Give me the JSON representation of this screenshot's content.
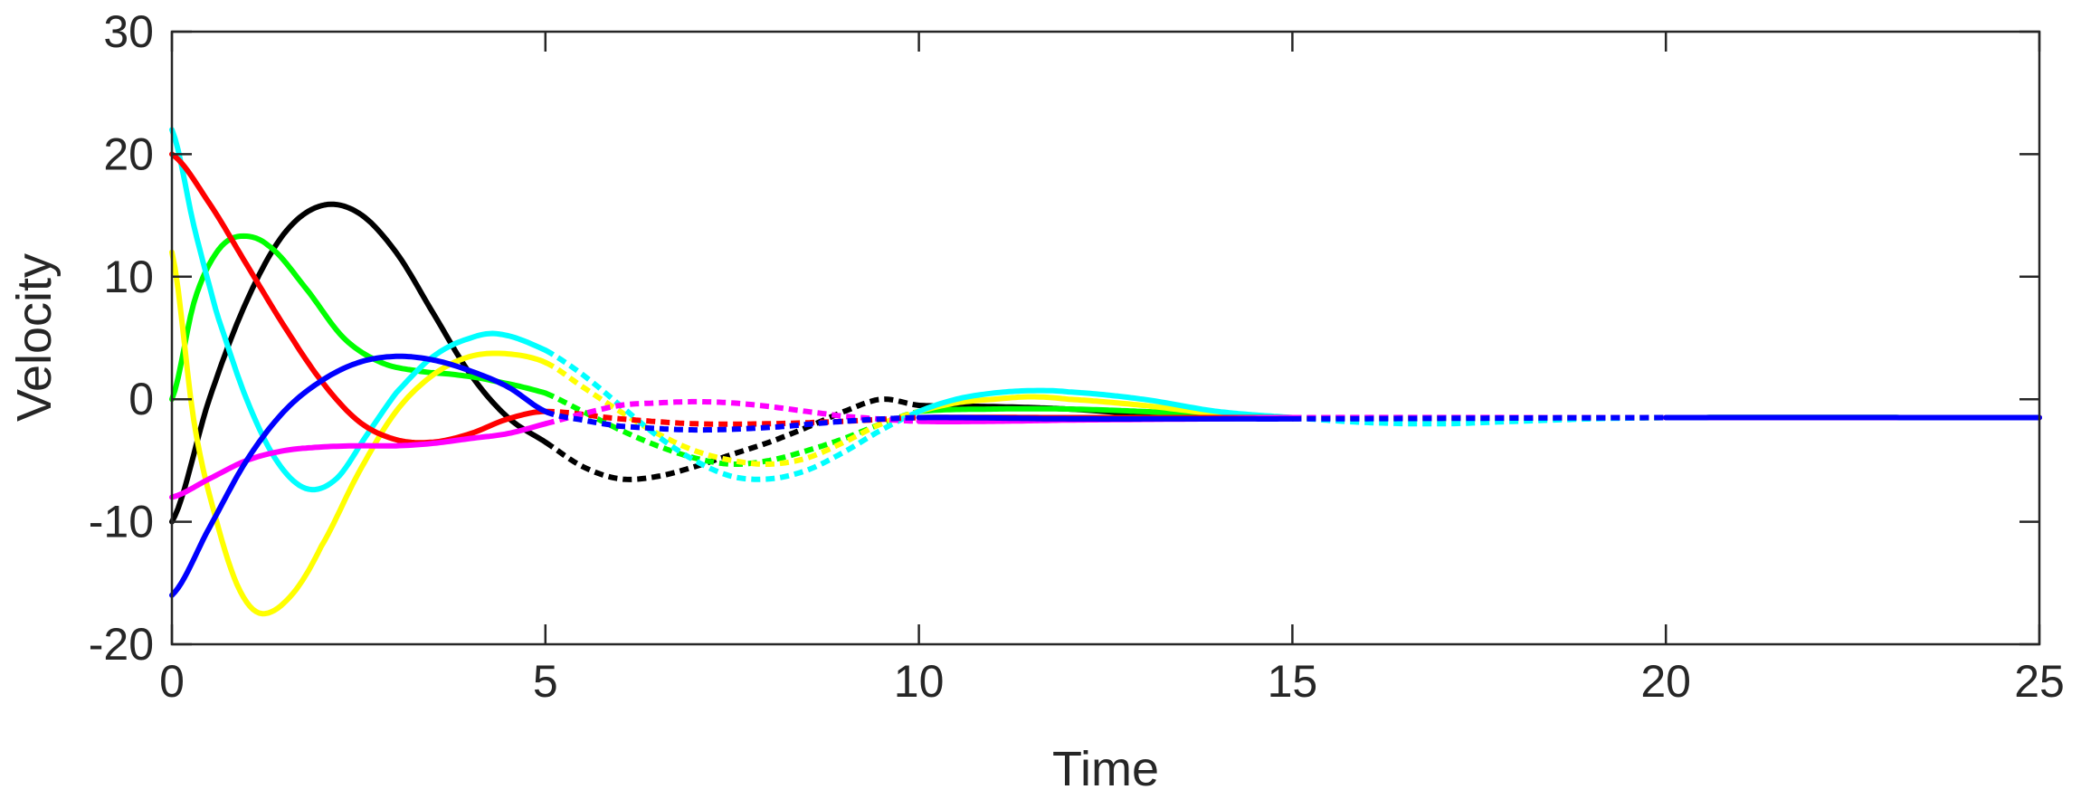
{
  "chart_data": {
    "type": "line",
    "xlabel": "Time",
    "ylabel": "Velocity",
    "xlim": [
      0,
      25
    ],
    "ylim": [
      -20,
      30
    ],
    "xticks": [
      0,
      5,
      10,
      15,
      20,
      25
    ],
    "yticks": [
      -20,
      -10,
      0,
      10,
      20,
      30
    ],
    "xtick_labels": [
      "0",
      "5",
      "10",
      "15",
      "20",
      "25"
    ],
    "ytick_labels": [
      "-20",
      "-10",
      "0",
      "10",
      "20",
      "30"
    ],
    "grid": false,
    "legend": "none",
    "segment_styles": [
      {
        "range": [
          0,
          5
        ],
        "style": "solid"
      },
      {
        "range": [
          5,
          10
        ],
        "style": "dotted"
      },
      {
        "range": [
          10,
          15
        ],
        "style": "solid"
      },
      {
        "range": [
          15,
          20
        ],
        "style": "dotted"
      },
      {
        "range": [
          20,
          25
        ],
        "style": "solid"
      }
    ],
    "series": [
      {
        "color": "#000000",
        "points": [
          [
            0,
            -10
          ],
          [
            0.5,
            0
          ],
          [
            1,
            8
          ],
          [
            1.5,
            13.5
          ],
          [
            2,
            15.8
          ],
          [
            2.5,
            15.2
          ],
          [
            3,
            12
          ],
          [
            3.5,
            7
          ],
          [
            4,
            2
          ],
          [
            4.5,
            -1.5
          ],
          [
            5,
            -3.5
          ],
          [
            5.5,
            -5.5
          ],
          [
            6,
            -6.5
          ],
          [
            6.5,
            -6.3
          ],
          [
            7,
            -5.5
          ],
          [
            7.5,
            -4.5
          ],
          [
            8,
            -3.5
          ],
          [
            8.5,
            -2.3
          ],
          [
            9,
            -1
          ],
          [
            9.5,
            0
          ],
          [
            10,
            -0.5
          ],
          [
            11,
            -0.6
          ],
          [
            12,
            -0.8
          ],
          [
            13,
            -1.2
          ],
          [
            14,
            -1.4
          ],
          [
            15,
            -1.5
          ],
          [
            17.5,
            -1.5
          ],
          [
            20,
            -1.5
          ],
          [
            25,
            -1.5
          ]
        ]
      },
      {
        "color": "#00ff00",
        "points": [
          [
            0,
            0
          ],
          [
            0.3,
            8
          ],
          [
            0.6,
            12
          ],
          [
            0.9,
            13.3
          ],
          [
            1.3,
            12.5
          ],
          [
            1.8,
            9
          ],
          [
            2.3,
            5
          ],
          [
            2.8,
            3
          ],
          [
            3.3,
            2.3
          ],
          [
            3.8,
            2
          ],
          [
            4.3,
            1.5
          ],
          [
            5,
            0.5
          ],
          [
            5.5,
            -1
          ],
          [
            6,
            -2.5
          ],
          [
            6.5,
            -3.8
          ],
          [
            7,
            -4.8
          ],
          [
            7.5,
            -5.3
          ],
          [
            8,
            -5
          ],
          [
            8.5,
            -4.2
          ],
          [
            9,
            -3.2
          ],
          [
            9.5,
            -2
          ],
          [
            10,
            -1
          ],
          [
            11,
            -0.8
          ],
          [
            12,
            -0.8
          ],
          [
            13,
            -1
          ],
          [
            14,
            -1.3
          ],
          [
            15,
            -1.5
          ],
          [
            17.5,
            -1.6
          ],
          [
            20,
            -1.5
          ],
          [
            25,
            -1.5
          ]
        ]
      },
      {
        "color": "#ffff00",
        "points": [
          [
            0,
            12
          ],
          [
            0.3,
            -2
          ],
          [
            0.6,
            -10
          ],
          [
            0.9,
            -15.5
          ],
          [
            1.2,
            -17.5
          ],
          [
            1.6,
            -16
          ],
          [
            2,
            -12
          ],
          [
            2.5,
            -6
          ],
          [
            3,
            -1
          ],
          [
            3.5,
            2
          ],
          [
            4,
            3.5
          ],
          [
            4.5,
            3.7
          ],
          [
            5,
            3
          ],
          [
            5.5,
            1
          ],
          [
            6,
            -1
          ],
          [
            6.5,
            -2.8
          ],
          [
            7,
            -4.2
          ],
          [
            7.5,
            -5
          ],
          [
            8,
            -5.3
          ],
          [
            8.5,
            -4.8
          ],
          [
            9,
            -3.5
          ],
          [
            9.5,
            -2
          ],
          [
            10,
            -1
          ],
          [
            10.5,
            -0.3
          ],
          [
            11,
            0
          ],
          [
            11.5,
            0.2
          ],
          [
            12,
            0
          ],
          [
            13,
            -0.5
          ],
          [
            14,
            -1.2
          ],
          [
            15,
            -1.5
          ],
          [
            17.5,
            -1.6
          ],
          [
            20,
            -1.5
          ],
          [
            25,
            -1.5
          ]
        ]
      },
      {
        "color": "#00ffff",
        "points": [
          [
            0,
            22
          ],
          [
            0.3,
            14
          ],
          [
            0.6,
            7
          ],
          [
            1,
            0
          ],
          [
            1.4,
            -5
          ],
          [
            1.8,
            -7.3
          ],
          [
            2.2,
            -6.5
          ],
          [
            2.6,
            -3
          ],
          [
            3,
            0.5
          ],
          [
            3.5,
            3.5
          ],
          [
            4,
            5
          ],
          [
            4.4,
            5.3
          ],
          [
            5,
            4
          ],
          [
            5.5,
            2
          ],
          [
            6,
            -0.5
          ],
          [
            6.5,
            -3
          ],
          [
            7,
            -5
          ],
          [
            7.5,
            -6.3
          ],
          [
            8,
            -6.5
          ],
          [
            8.5,
            -5.8
          ],
          [
            9,
            -4.3
          ],
          [
            9.5,
            -2.5
          ],
          [
            10,
            -1
          ],
          [
            10.5,
            0
          ],
          [
            11,
            0.5
          ],
          [
            11.5,
            0.7
          ],
          [
            12,
            0.6
          ],
          [
            13,
            0
          ],
          [
            14,
            -1
          ],
          [
            15,
            -1.5
          ],
          [
            16,
            -1.9
          ],
          [
            17,
            -2
          ],
          [
            18,
            -1.8
          ],
          [
            19,
            -1.6
          ],
          [
            20,
            -1.5
          ],
          [
            25,
            -1.5
          ]
        ]
      },
      {
        "color": "#ff0000",
        "points": [
          [
            0,
            20
          ],
          [
            0.5,
            16
          ],
          [
            1,
            11
          ],
          [
            1.5,
            6
          ],
          [
            2,
            1.5
          ],
          [
            2.5,
            -1.8
          ],
          [
            3,
            -3.3
          ],
          [
            3.5,
            -3.5
          ],
          [
            4,
            -2.8
          ],
          [
            4.5,
            -1.6
          ],
          [
            5,
            -1
          ],
          [
            6,
            -1.6
          ],
          [
            7,
            -2
          ],
          [
            8,
            -2
          ],
          [
            9,
            -1.8
          ],
          [
            10,
            -1.5
          ],
          [
            12,
            -1.5
          ],
          [
            14,
            -1.5
          ],
          [
            15,
            -1.5
          ],
          [
            20,
            -1.5
          ],
          [
            25,
            -1.5
          ]
        ]
      },
      {
        "color": "#ff00ff",
        "points": [
          [
            0,
            -8
          ],
          [
            0.5,
            -6.5
          ],
          [
            1,
            -5
          ],
          [
            1.5,
            -4.2
          ],
          [
            2,
            -3.9
          ],
          [
            2.5,
            -3.8
          ],
          [
            3,
            -3.8
          ],
          [
            3.5,
            -3.6
          ],
          [
            4,
            -3.2
          ],
          [
            4.5,
            -2.8
          ],
          [
            5,
            -2
          ],
          [
            5.5,
            -1.2
          ],
          [
            6,
            -0.5
          ],
          [
            6.5,
            -0.3
          ],
          [
            7,
            -0.2
          ],
          [
            7.5,
            -0.3
          ],
          [
            8,
            -0.6
          ],
          [
            8.5,
            -1
          ],
          [
            9,
            -1.4
          ],
          [
            10,
            -1.8
          ],
          [
            11,
            -1.8
          ],
          [
            12,
            -1.7
          ],
          [
            14,
            -1.6
          ],
          [
            15,
            -1.5
          ],
          [
            20,
            -1.5
          ],
          [
            25,
            -1.5
          ]
        ]
      },
      {
        "color": "#0000ff",
        "points": [
          [
            0,
            -16
          ],
          [
            0.5,
            -10.5
          ],
          [
            1,
            -5
          ],
          [
            1.5,
            -1
          ],
          [
            2,
            1.5
          ],
          [
            2.5,
            3
          ],
          [
            3,
            3.5
          ],
          [
            3.5,
            3.2
          ],
          [
            4,
            2.3
          ],
          [
            4.5,
            1
          ],
          [
            5,
            -1
          ],
          [
            5.5,
            -1.7
          ],
          [
            6,
            -2.2
          ],
          [
            7,
            -2.5
          ],
          [
            8,
            -2.3
          ],
          [
            9,
            -1.8
          ],
          [
            10,
            -1.5
          ],
          [
            12,
            -1.6
          ],
          [
            14,
            -1.6
          ],
          [
            15,
            -1.6
          ],
          [
            20,
            -1.5
          ],
          [
            25,
            -1.5
          ]
        ]
      }
    ]
  }
}
